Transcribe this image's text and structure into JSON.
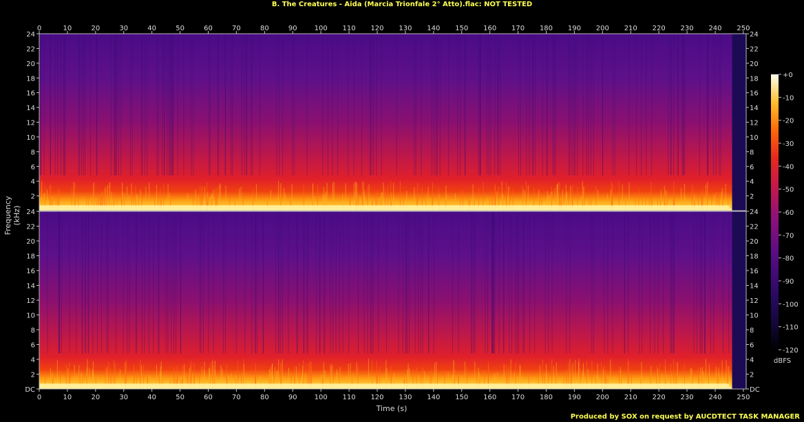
{
  "title": "B. The Creatures - Aida (Marcia Trionfale 2° Atto).flac: NOT TESTED",
  "footer": "Produced by SOX on request by AUCDTECT TASK MANAGER",
  "chart_data": {
    "type": "heatmap",
    "title": "B. The Creatures - Aida (Marcia Trionfale 2° Atto).flac: NOT TESTED",
    "xlabel": "Time (s)",
    "ylabel": "Frequency (kHz)",
    "colorbar_label": "dBFS",
    "xlim": [
      0,
      251
    ],
    "ylim": [
      0,
      24
    ],
    "x_ticks": [
      0,
      10,
      20,
      30,
      40,
      50,
      60,
      70,
      80,
      90,
      100,
      110,
      120,
      130,
      140,
      150,
      160,
      170,
      180,
      190,
      200,
      210,
      220,
      230,
      240,
      250
    ],
    "y_tick_labels_top": [
      "2",
      "4",
      "6",
      "8",
      "10",
      "12",
      "14",
      "16",
      "18",
      "20",
      "22",
      "24"
    ],
    "y_tick_labels_bottom": [
      "DC",
      "2",
      "4",
      "6",
      "8",
      "10",
      "12",
      "14",
      "16",
      "18",
      "20",
      "22",
      "24"
    ],
    "colorbar_ticks": [
      "+0",
      "-10",
      "-20",
      "-30",
      "-40",
      "-50",
      "-60",
      "-70",
      "-80",
      "-90",
      "-100",
      "-110",
      "-120"
    ],
    "channels": 2,
    "colors": [
      "#000000",
      "#1a0a4a",
      "#3c0a78",
      "#6a0a8a",
      "#a0106a",
      "#d8202a",
      "#f04010",
      "#ff8a00",
      "#ffd040",
      "#fffff0"
    ]
  }
}
